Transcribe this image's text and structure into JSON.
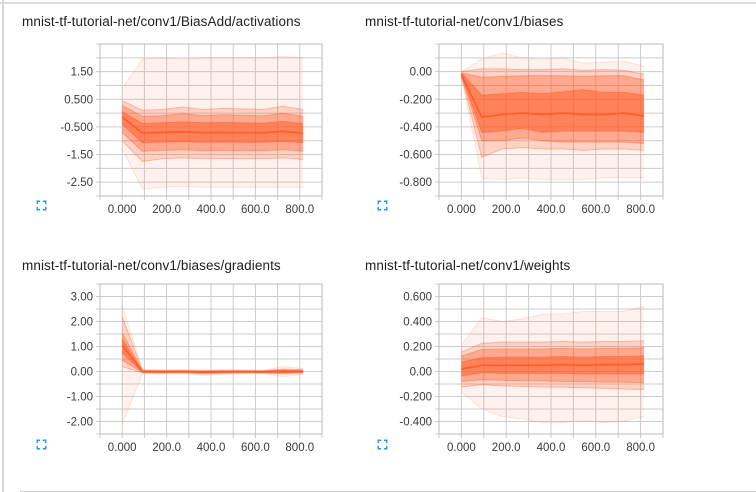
{
  "page": {
    "background": "#ffffff",
    "accent_orange": "#ff5722",
    "icon_blue": "#2196f3",
    "grid_color": "#cccccc",
    "plot_border_color": "#bbbbbb",
    "title_color": "#212121",
    "tick_label_color": "#3a3a3a",
    "icons": {
      "expand": "fullscreen-icon"
    }
  },
  "chart_data": [
    {
      "type": "area",
      "variant": "tensorboard-distribution",
      "title": "mnist-tf-tutorial-net/conv1/BiasAdd/activations",
      "xlabel": "",
      "ylabel": "",
      "x_domain": [
        -100,
        900
      ],
      "y_domain": [
        -3.0,
        2.5
      ],
      "x_grid_step": 100,
      "y_grid_step": 0.5,
      "x_ticks": [
        {
          "value": 0,
          "label": "0.000"
        },
        {
          "value": 200,
          "label": "200.0"
        },
        {
          "value": 400,
          "label": "400.0"
        },
        {
          "value": 600,
          "label": "600.0"
        },
        {
          "value": 800,
          "label": "800.0"
        }
      ],
      "y_ticks": [
        {
          "value": 1.5,
          "label": "1.50"
        },
        {
          "value": 0.5,
          "label": "0.500"
        },
        {
          "value": -0.5,
          "label": "-0.500"
        },
        {
          "value": -1.5,
          "label": "-1.50"
        },
        {
          "value": -2.5,
          "label": "-2.50"
        }
      ],
      "steps": [
        0,
        91,
        181,
        272,
        362,
        453,
        543,
        634,
        724,
        815
      ],
      "percentiles": {
        "max": [
          0.9,
          1.95,
          2.0,
          1.95,
          2.0,
          2.0,
          2.0,
          2.0,
          2.05,
          2.0
        ],
        "p93": [
          0.45,
          0.1,
          0.13,
          0.22,
          0.13,
          0.17,
          0.15,
          0.13,
          0.25,
          0.13
        ],
        "p84": [
          0.28,
          -0.12,
          -0.09,
          -0.02,
          -0.09,
          -0.06,
          -0.08,
          -0.1,
          0.0,
          -0.12
        ],
        "p69": [
          0.05,
          -0.38,
          -0.35,
          -0.32,
          -0.35,
          -0.34,
          -0.35,
          -0.37,
          -0.3,
          -0.38
        ],
        "p50": [
          -0.15,
          -0.72,
          -0.7,
          -0.68,
          -0.71,
          -0.7,
          -0.71,
          -0.71,
          -0.66,
          -0.73
        ],
        "p31": [
          -0.4,
          -1.08,
          -1.05,
          -1.03,
          -1.06,
          -1.05,
          -1.06,
          -1.06,
          -1.02,
          -1.08
        ],
        "p16": [
          -0.7,
          -1.38,
          -1.35,
          -1.33,
          -1.36,
          -1.35,
          -1.36,
          -1.36,
          -1.33,
          -1.38
        ],
        "p7": [
          -1.0,
          -1.75,
          -1.65,
          -1.62,
          -1.65,
          -1.64,
          -1.65,
          -1.65,
          -1.62,
          -1.68
        ],
        "min": [
          -1.3,
          -2.75,
          -2.68,
          -2.65,
          -2.68,
          -2.68,
          -2.68,
          -2.68,
          -2.68,
          -2.68
        ]
      }
    },
    {
      "type": "area",
      "variant": "tensorboard-distribution",
      "title": "mnist-tf-tutorial-net/conv1/biases",
      "xlabel": "",
      "ylabel": "",
      "x_domain": [
        -100,
        900
      ],
      "y_domain": [
        -0.9,
        0.2
      ],
      "x_grid_step": 100,
      "y_grid_step": 0.1,
      "x_ticks": [
        {
          "value": 0,
          "label": "0.000"
        },
        {
          "value": 200,
          "label": "200.0"
        },
        {
          "value": 400,
          "label": "400.0"
        },
        {
          "value": 600,
          "label": "600.0"
        },
        {
          "value": 800,
          "label": "800.0"
        }
      ],
      "y_ticks": [
        {
          "value": 0,
          "label": "0.00"
        },
        {
          "value": -0.2,
          "label": "-0.200"
        },
        {
          "value": -0.4,
          "label": "-0.400"
        },
        {
          "value": -0.6,
          "label": "-0.600"
        },
        {
          "value": -0.8,
          "label": "-0.800"
        }
      ],
      "steps": [
        0,
        91,
        181,
        272,
        362,
        453,
        543,
        634,
        724,
        815
      ],
      "percentiles": {
        "max": [
          0.0,
          0.09,
          0.135,
          0.1,
          0.09,
          0.1,
          0.06,
          0.07,
          0.075,
          0.04
        ],
        "p93": [
          0.0,
          0.02,
          0.02,
          0.015,
          0.015,
          0.02,
          0.01,
          0.015,
          0.01,
          -0.02
        ],
        "p84": [
          -0.01,
          -0.04,
          -0.035,
          -0.03,
          -0.03,
          -0.03,
          -0.035,
          -0.03,
          -0.03,
          -0.06
        ],
        "p69": [
          -0.01,
          -0.17,
          -0.16,
          -0.15,
          -0.16,
          -0.145,
          -0.13,
          -0.15,
          -0.15,
          -0.17
        ],
        "p50": [
          -0.02,
          -0.33,
          -0.31,
          -0.3,
          -0.31,
          -0.3,
          -0.31,
          -0.31,
          -0.3,
          -0.32
        ],
        "p31": [
          -0.02,
          -0.44,
          -0.43,
          -0.41,
          -0.44,
          -0.43,
          -0.43,
          -0.43,
          -0.43,
          -0.44
        ],
        "p16": [
          -0.03,
          -0.5,
          -0.5,
          -0.48,
          -0.5,
          -0.51,
          -0.51,
          -0.51,
          -0.51,
          -0.52
        ],
        "p7": [
          -0.03,
          -0.62,
          -0.56,
          -0.55,
          -0.56,
          -0.56,
          -0.57,
          -0.56,
          -0.56,
          -0.57
        ],
        "min": [
          -0.04,
          -0.77,
          -0.78,
          -0.77,
          -0.78,
          -0.78,
          -0.78,
          -0.77,
          -0.77,
          -0.77
        ]
      }
    },
    {
      "type": "area",
      "variant": "tensorboard-distribution",
      "title": "mnist-tf-tutorial-net/conv1/biases/gradients",
      "xlabel": "",
      "ylabel": "",
      "x_domain": [
        -100,
        900
      ],
      "y_domain": [
        -2.5,
        3.5
      ],
      "x_grid_step": 100,
      "y_grid_step": 0.5,
      "x_ticks": [
        {
          "value": 0,
          "label": "0.000"
        },
        {
          "value": 200,
          "label": "200.0"
        },
        {
          "value": 400,
          "label": "400.0"
        },
        {
          "value": 600,
          "label": "600.0"
        },
        {
          "value": 800,
          "label": "800.0"
        }
      ],
      "y_ticks": [
        {
          "value": 3,
          "label": "3.00"
        },
        {
          "value": 2,
          "label": "2.00"
        },
        {
          "value": 1,
          "label": "1.00"
        },
        {
          "value": 0,
          "label": "0.00"
        },
        {
          "value": -1,
          "label": "-1.00"
        },
        {
          "value": -2,
          "label": "-2.00"
        }
      ],
      "steps": [
        0,
        91,
        181,
        272,
        362,
        453,
        543,
        634,
        724,
        815
      ],
      "percentiles": {
        "max": [
          2.6,
          0.1,
          0.07,
          0.08,
          0.06,
          0.08,
          0.07,
          0.05,
          0.2,
          0.12
        ],
        "p93": [
          2.2,
          0.05,
          0.04,
          0.04,
          0.03,
          0.04,
          0.03,
          0.03,
          0.1,
          0.07
        ],
        "p84": [
          1.55,
          0.03,
          0.02,
          0.02,
          0.01,
          0.02,
          0.02,
          0.01,
          0.06,
          0.04
        ],
        "p69": [
          1.3,
          0.02,
          0.01,
          0.01,
          0.0,
          0.01,
          0.01,
          0.0,
          0.03,
          0.02
        ],
        "p50": [
          1.05,
          0.0,
          -0.01,
          0.0,
          -0.02,
          -0.01,
          0.0,
          -0.01,
          0.0,
          0.0
        ],
        "p31": [
          0.75,
          -0.02,
          -0.02,
          -0.02,
          -0.04,
          -0.03,
          -0.02,
          -0.02,
          -0.03,
          -0.02
        ],
        "p16": [
          0.45,
          -0.03,
          -0.04,
          -0.03,
          -0.06,
          -0.05,
          -0.04,
          -0.04,
          -0.06,
          -0.04
        ],
        "p7": [
          0.2,
          -0.05,
          -0.06,
          -0.05,
          -0.09,
          -0.07,
          -0.05,
          -0.06,
          -0.09,
          -0.06
        ],
        "min": [
          -2.1,
          -0.1,
          -0.1,
          -0.09,
          -0.15,
          -0.12,
          -0.09,
          -0.1,
          -0.2,
          -0.12
        ]
      }
    },
    {
      "type": "area",
      "variant": "tensorboard-distribution",
      "title": "mnist-tf-tutorial-net/conv1/weights",
      "xlabel": "",
      "ylabel": "",
      "x_domain": [
        -100,
        900
      ],
      "y_domain": [
        -0.5,
        0.7
      ],
      "x_grid_step": 100,
      "y_grid_step": 0.1,
      "x_ticks": [
        {
          "value": 0,
          "label": "0.000"
        },
        {
          "value": 200,
          "label": "200.0"
        },
        {
          "value": 400,
          "label": "400.0"
        },
        {
          "value": 600,
          "label": "600.0"
        },
        {
          "value": 800,
          "label": "800.0"
        }
      ],
      "y_ticks": [
        {
          "value": 0.6,
          "label": "0.600"
        },
        {
          "value": 0.4,
          "label": "0.400"
        },
        {
          "value": 0.2,
          "label": "0.200"
        },
        {
          "value": 0,
          "label": "0.00"
        },
        {
          "value": -0.2,
          "label": "-0.200"
        },
        {
          "value": -0.4,
          "label": "-0.400"
        }
      ],
      "steps": [
        0,
        91,
        181,
        272,
        362,
        453,
        543,
        634,
        724,
        815
      ],
      "percentiles": {
        "max": [
          0.21,
          0.43,
          0.4,
          0.42,
          0.46,
          0.46,
          0.48,
          0.48,
          0.48,
          0.52
        ],
        "p93": [
          0.155,
          0.225,
          0.235,
          0.235,
          0.235,
          0.24,
          0.235,
          0.24,
          0.24,
          0.245
        ],
        "p84": [
          0.125,
          0.175,
          0.18,
          0.18,
          0.18,
          0.185,
          0.18,
          0.185,
          0.185,
          0.19
        ],
        "p69": [
          0.075,
          0.11,
          0.115,
          0.115,
          0.115,
          0.12,
          0.115,
          0.12,
          0.12,
          0.125
        ],
        "p50": [
          0.02,
          0.05,
          0.05,
          0.05,
          0.05,
          0.055,
          0.05,
          0.055,
          0.055,
          0.06
        ],
        "p31": [
          -0.035,
          -0.01,
          -0.015,
          -0.015,
          -0.015,
          -0.015,
          -0.02,
          -0.02,
          -0.02,
          -0.02
        ],
        "p16": [
          -0.08,
          -0.065,
          -0.07,
          -0.075,
          -0.075,
          -0.08,
          -0.08,
          -0.085,
          -0.085,
          -0.09
        ],
        "p7": [
          -0.125,
          -0.105,
          -0.115,
          -0.12,
          -0.125,
          -0.125,
          -0.13,
          -0.135,
          -0.14,
          -0.145
        ],
        "min": [
          -0.16,
          -0.3,
          -0.36,
          -0.38,
          -0.41,
          -0.41,
          -0.39,
          -0.41,
          -0.4,
          -0.36
        ]
      }
    }
  ]
}
